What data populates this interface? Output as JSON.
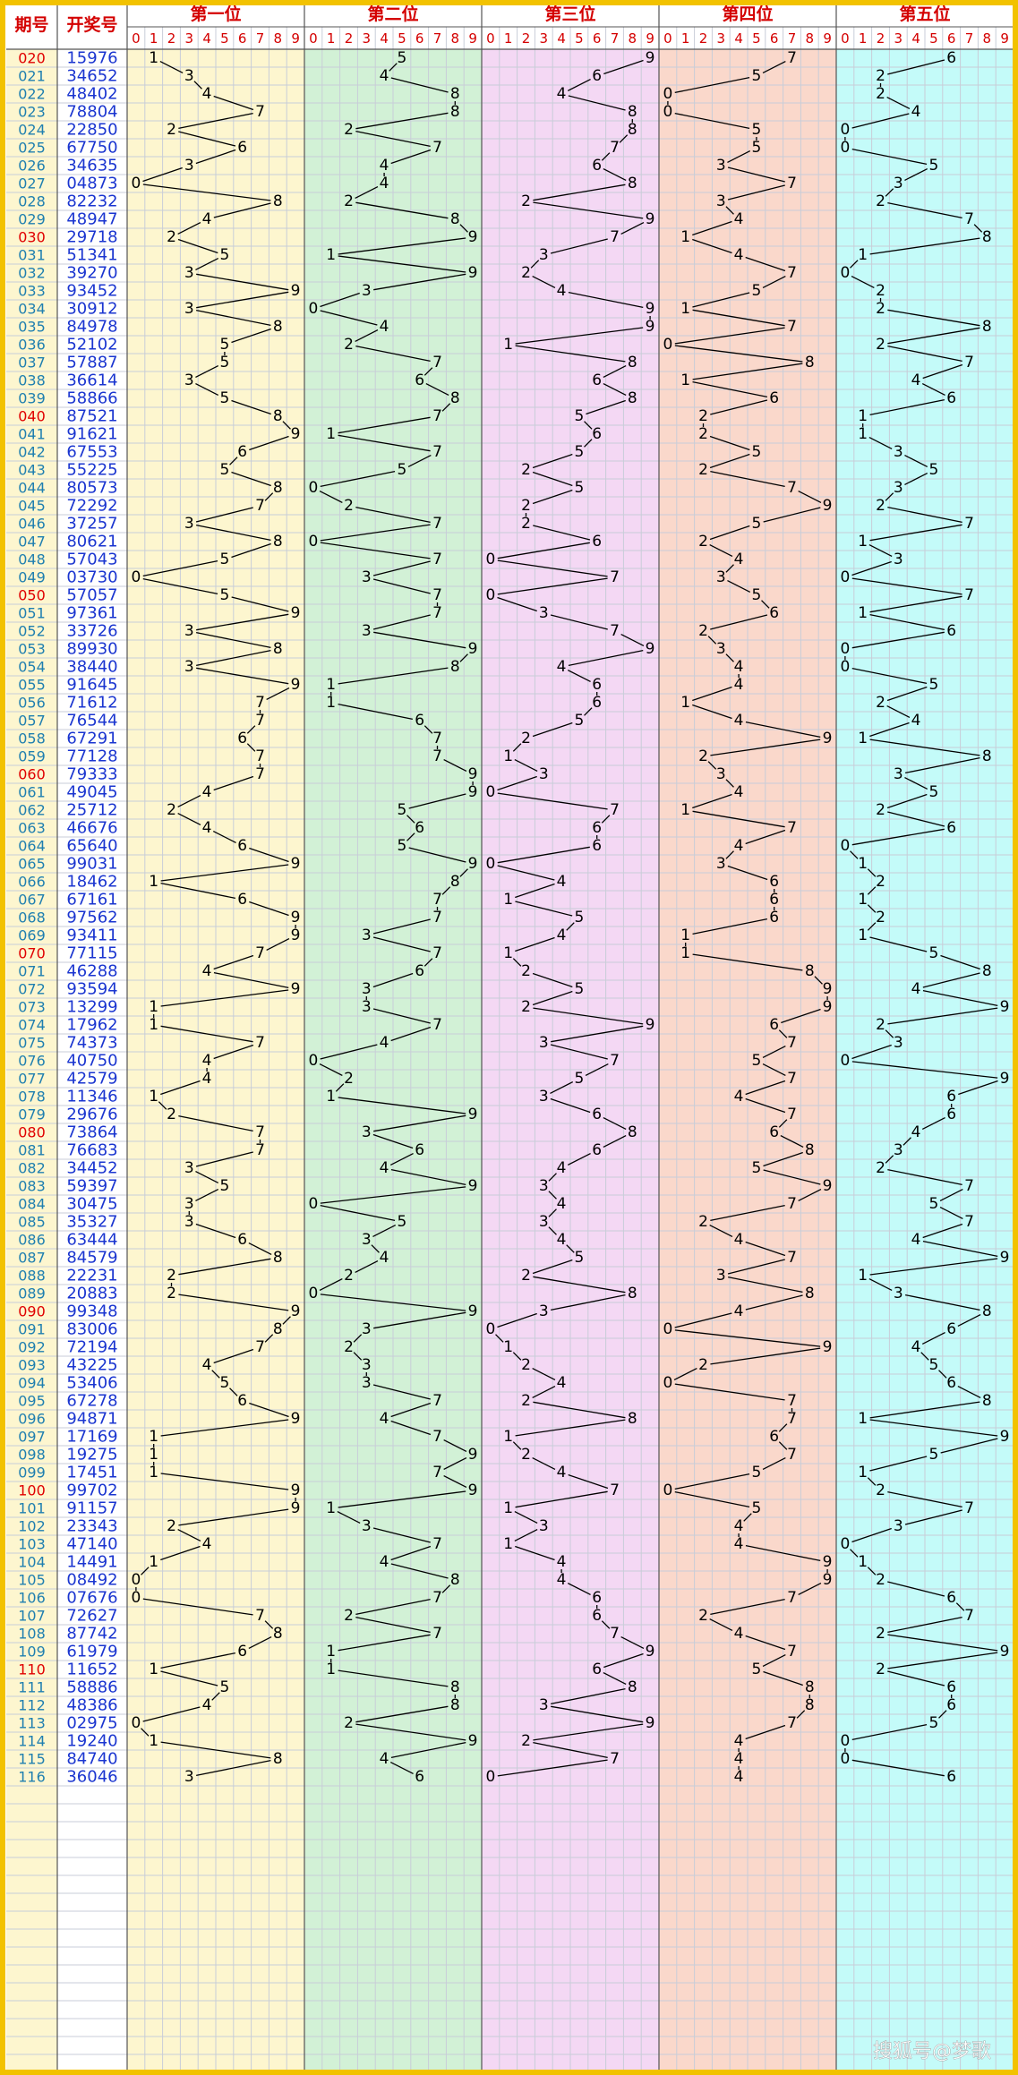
{
  "header": {
    "period": "期号",
    "draw": "开奖号",
    "positions": [
      "第一位",
      "第二位",
      "第三位",
      "第四位",
      "第五位"
    ],
    "digits": [
      0,
      1,
      2,
      3,
      4,
      5,
      6,
      7,
      8,
      9
    ]
  },
  "rows": {
    "periods": [
      "020",
      "021",
      "022",
      "023",
      "024",
      "025",
      "026",
      "027",
      "028",
      "029",
      "030",
      "031",
      "032",
      "033",
      "034",
      "035",
      "036",
      "037",
      "038",
      "039",
      "040",
      "041",
      "042",
      "043",
      "044",
      "045",
      "046",
      "047",
      "048",
      "049",
      "050",
      "051",
      "052",
      "053",
      "054",
      "055",
      "056",
      "057",
      "058",
      "059",
      "060",
      "061",
      "062",
      "063",
      "064",
      "065",
      "066",
      "067",
      "068",
      "069",
      "070",
      "071",
      "072",
      "073",
      "074",
      "075",
      "076",
      "077",
      "078",
      "079",
      "080",
      "081",
      "082",
      "083",
      "084",
      "085",
      "086",
      "087",
      "088",
      "089",
      "090",
      "091",
      "092",
      "093",
      "094",
      "095",
      "096",
      "097",
      "098",
      "099",
      "100",
      "101",
      "102",
      "103",
      "104",
      "105",
      "106",
      "107",
      "108",
      "109",
      "110",
      "111",
      "112",
      "113",
      "114",
      "115",
      "116"
    ],
    "draws": [
      "15976",
      "34652",
      "48402",
      "78804",
      "22850",
      "67750",
      "34635",
      "04873",
      "82232",
      "48947",
      "29718",
      "51341",
      "39270",
      "93452",
      "30912",
      "84978",
      "52102",
      "57887",
      "36614",
      "58866",
      "87521",
      "91621",
      "67553",
      "55225",
      "80573",
      "72292",
      "37257",
      "80621",
      "57043",
      "03730",
      "57057",
      "97361",
      "33726",
      "89930",
      "38440",
      "91645",
      "71612",
      "76544",
      "67291",
      "77128",
      "79333",
      "49045",
      "25712",
      "46676",
      "65640",
      "99031",
      "18462",
      "67161",
      "97562",
      "93411",
      "77115",
      "46288",
      "93594",
      "13299",
      "17962",
      "74373",
      "40750",
      "42579",
      "11346",
      "29676",
      "73864",
      "76683",
      "34452",
      "59397",
      "30475",
      "35327",
      "63444",
      "84579",
      "22231",
      "20883",
      "99348",
      "83006",
      "72194",
      "43225",
      "53406",
      "67278",
      "94871",
      "17169",
      "19275",
      "17451",
      "99702",
      "91157",
      "23343",
      "47140",
      "14491",
      "08492",
      "07676",
      "72627",
      "87742",
      "61979",
      "11652",
      "58886",
      "48386",
      "02975",
      "19240",
      "84740",
      "36046"
    ],
    "digits": [
      [
        1,
        5,
        9,
        7,
        6
      ],
      [
        3,
        4,
        6,
        5,
        2
      ],
      [
        4,
        8,
        4,
        0,
        2
      ],
      [
        7,
        8,
        8,
        0,
        4
      ],
      [
        2,
        2,
        8,
        5,
        0
      ],
      [
        6,
        7,
        7,
        5,
        0
      ],
      [
        3,
        4,
        6,
        3,
        5
      ],
      [
        0,
        4,
        8,
        7,
        3
      ],
      [
        8,
        2,
        2,
        3,
        2
      ],
      [
        4,
        8,
        9,
        4,
        7
      ],
      [
        2,
        9,
        7,
        1,
        8
      ],
      [
        5,
        1,
        3,
        4,
        1
      ],
      [
        3,
        9,
        2,
        7,
        0
      ],
      [
        9,
        3,
        4,
        5,
        2
      ],
      [
        3,
        0,
        9,
        1,
        2
      ],
      [
        8,
        4,
        9,
        7,
        8
      ],
      [
        5,
        2,
        1,
        0,
        2
      ],
      [
        5,
        7,
        8,
        8,
        7
      ],
      [
        3,
        6,
        6,
        1,
        4
      ],
      [
        5,
        8,
        8,
        6,
        6
      ],
      [
        8,
        7,
        5,
        2,
        1
      ],
      [
        9,
        1,
        6,
        2,
        1
      ],
      [
        6,
        7,
        5,
        5,
        3
      ],
      [
        5,
        5,
        2,
        2,
        5
      ],
      [
        8,
        0,
        5,
        7,
        3
      ],
      [
        7,
        2,
        2,
        9,
        2
      ],
      [
        3,
        7,
        2,
        5,
        7
      ],
      [
        8,
        0,
        6,
        2,
        1
      ],
      [
        5,
        7,
        0,
        4,
        3
      ],
      [
        0,
        3,
        7,
        3,
        0
      ],
      [
        5,
        7,
        0,
        5,
        7
      ],
      [
        9,
        7,
        3,
        6,
        1
      ],
      [
        3,
        3,
        7,
        2,
        6
      ],
      [
        8,
        9,
        9,
        3,
        0
      ],
      [
        3,
        8,
        4,
        4,
        0
      ],
      [
        9,
        1,
        6,
        4,
        5
      ],
      [
        7,
        1,
        6,
        1,
        2
      ],
      [
        7,
        6,
        5,
        4,
        4
      ],
      [
        6,
        7,
        2,
        9,
        1
      ],
      [
        7,
        7,
        1,
        2,
        8
      ],
      [
        7,
        9,
        3,
        3,
        3
      ],
      [
        4,
        9,
        0,
        4,
        5
      ],
      [
        2,
        5,
        7,
        1,
        2
      ],
      [
        4,
        6,
        6,
        7,
        6
      ],
      [
        6,
        5,
        6,
        4,
        0
      ],
      [
        9,
        9,
        0,
        3,
        1
      ],
      [
        1,
        8,
        4,
        6,
        2
      ],
      [
        6,
        7,
        1,
        6,
        1
      ],
      [
        9,
        7,
        5,
        6,
        2
      ],
      [
        9,
        3,
        4,
        1,
        1
      ],
      [
        7,
        7,
        1,
        1,
        5
      ],
      [
        4,
        6,
        2,
        8,
        8
      ],
      [
        9,
        3,
        5,
        9,
        4
      ],
      [
        1,
        3,
        2,
        9,
        9
      ],
      [
        1,
        7,
        9,
        6,
        2
      ],
      [
        7,
        4,
        3,
        7,
        3
      ],
      [
        4,
        0,
        7,
        5,
        0
      ],
      [
        4,
        2,
        5,
        7,
        9
      ],
      [
        1,
        1,
        3,
        4,
        6
      ],
      [
        2,
        9,
        6,
        7,
        6
      ],
      [
        7,
        3,
        8,
        6,
        4
      ],
      [
        7,
        6,
        6,
        8,
        3
      ],
      [
        3,
        4,
        4,
        5,
        2
      ],
      [
        5,
        9,
        3,
        9,
        7
      ],
      [
        3,
        0,
        4,
        7,
        5
      ],
      [
        3,
        5,
        3,
        2,
        7
      ],
      [
        6,
        3,
        4,
        4,
        4
      ],
      [
        8,
        4,
        5,
        7,
        9
      ],
      [
        2,
        2,
        2,
        3,
        1
      ],
      [
        2,
        0,
        8,
        8,
        3
      ],
      [
        9,
        9,
        3,
        4,
        8
      ],
      [
        8,
        3,
        0,
        0,
        6
      ],
      [
        7,
        2,
        1,
        9,
        4
      ],
      [
        4,
        3,
        2,
        2,
        5
      ],
      [
        5,
        3,
        4,
        0,
        6
      ],
      [
        6,
        7,
        2,
        7,
        8
      ],
      [
        9,
        4,
        8,
        7,
        1
      ],
      [
        1,
        7,
        1,
        6,
        9
      ],
      [
        1,
        9,
        2,
        7,
        5
      ],
      [
        1,
        7,
        4,
        5,
        1
      ],
      [
        9,
        9,
        7,
        0,
        2
      ],
      [
        9,
        1,
        1,
        5,
        7
      ],
      [
        2,
        3,
        3,
        4,
        3
      ],
      [
        4,
        7,
        1,
        4,
        0
      ],
      [
        1,
        4,
        4,
        9,
        1
      ],
      [
        0,
        8,
        4,
        9,
        2
      ],
      [
        0,
        7,
        6,
        7,
        6
      ],
      [
        7,
        2,
        6,
        2,
        7
      ],
      [
        8,
        7,
        7,
        4,
        2
      ],
      [
        6,
        1,
        9,
        7,
        9
      ],
      [
        1,
        1,
        6,
        5,
        2
      ],
      [
        5,
        8,
        8,
        8,
        6
      ],
      [
        4,
        8,
        3,
        8,
        6
      ],
      [
        0,
        2,
        9,
        7,
        5
      ],
      [
        1,
        9,
        2,
        4,
        0
      ],
      [
        8,
        4,
        7,
        4,
        0
      ],
      [
        3,
        6,
        0,
        4,
        6
      ]
    ]
  },
  "watermark": "搜狐号@梦歌"
}
